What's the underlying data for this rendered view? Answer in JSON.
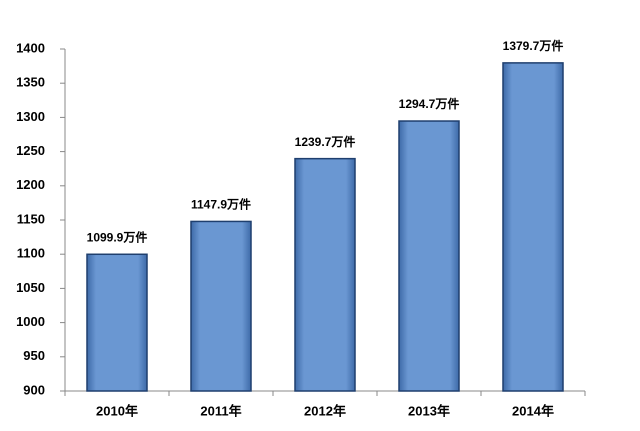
{
  "chart_data": {
    "type": "bar",
    "categories": [
      "2010年",
      "2011年",
      "2012年",
      "2013年",
      "2014年"
    ],
    "values": [
      1099.9,
      1147.9,
      1239.7,
      1294.7,
      1379.7
    ],
    "value_labels": [
      "1099.9万件",
      "1147.9万件",
      "1239.7万件",
      "1294.7万件",
      "1379.7万件"
    ],
    "color": "#5f8dc8",
    "ylim": [
      900,
      1400
    ],
    "yticks": [
      900,
      950,
      1000,
      1050,
      1100,
      1150,
      1200,
      1250,
      1300,
      1350,
      1400
    ],
    "grid": false
  }
}
